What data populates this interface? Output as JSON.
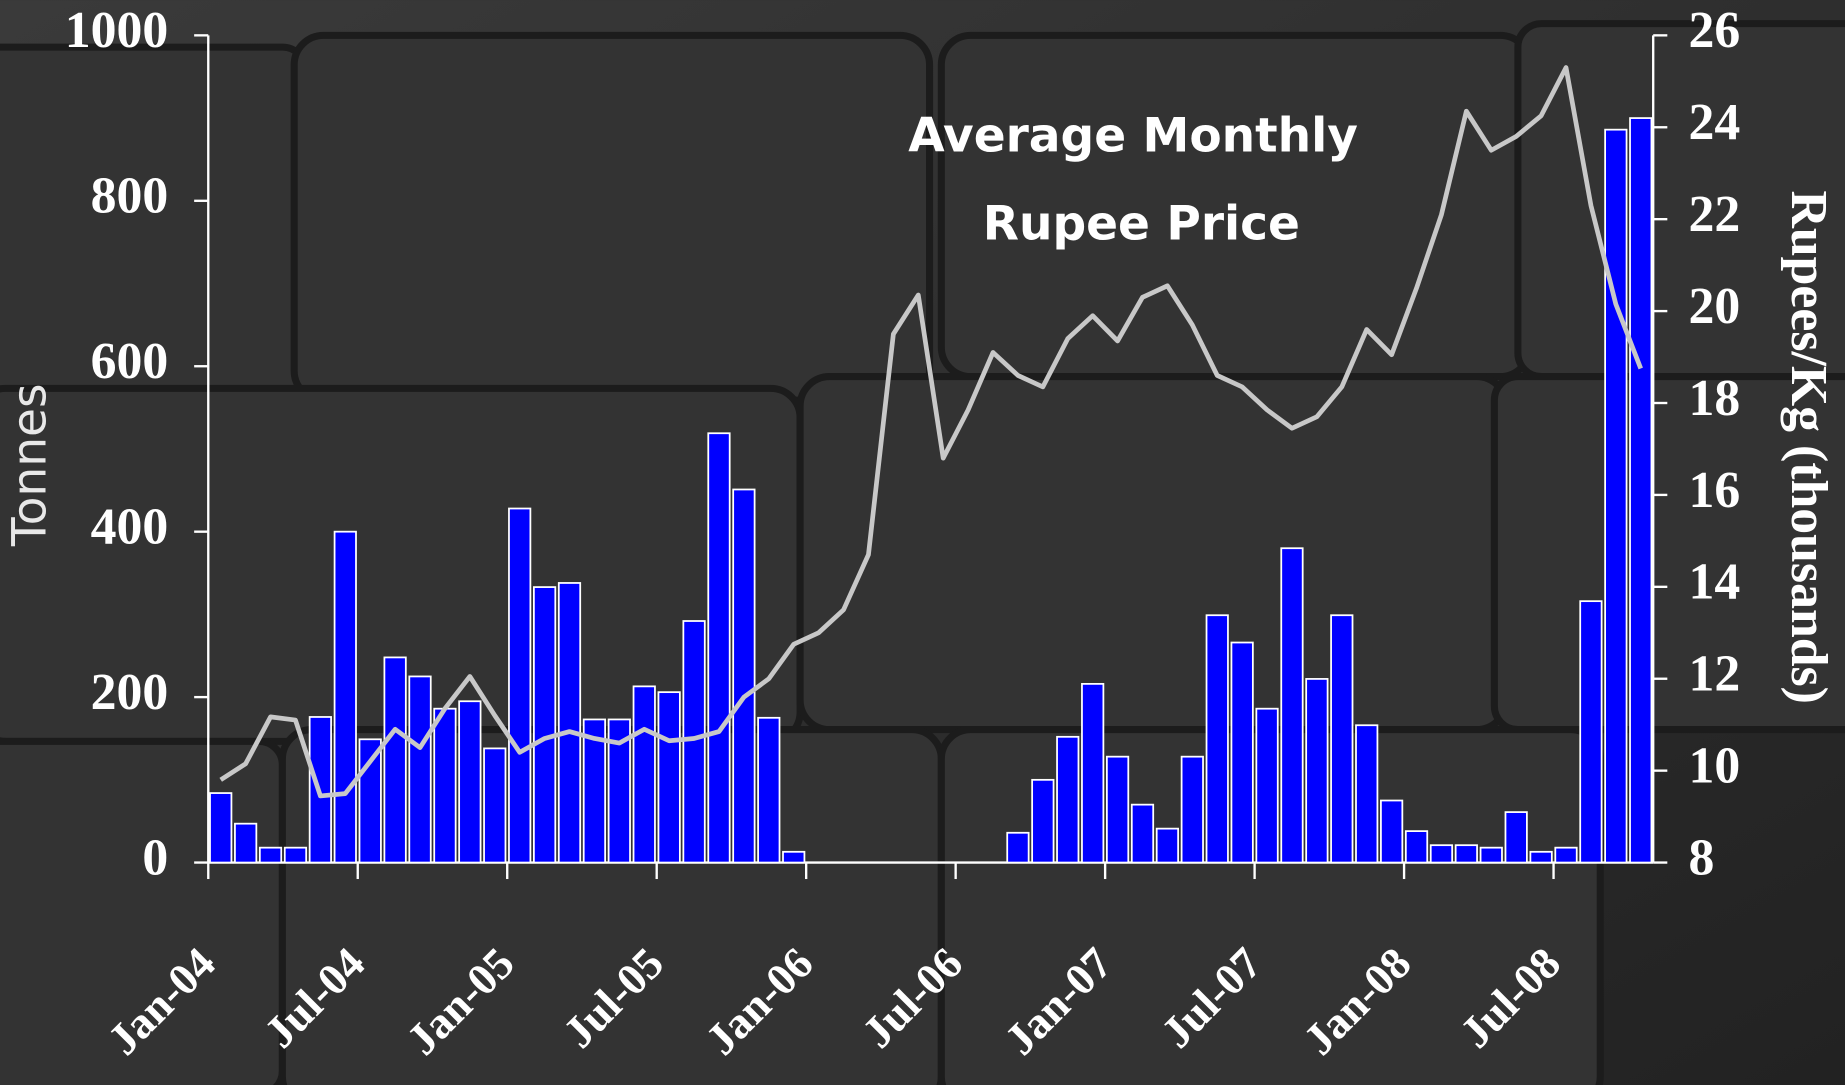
{
  "chart_data": {
    "type": "bar-line",
    "annotation": [
      "Average Monthly",
      "Rupee Price"
    ],
    "ylabel": "Tonnes",
    "y2label": "Rupees/Kg (thousands)",
    "categories": [
      "Jan-04",
      null,
      null,
      null,
      null,
      null,
      "Jul-04",
      null,
      null,
      null,
      null,
      null,
      "Jan-05",
      null,
      null,
      null,
      null,
      null,
      "Jul-05",
      null,
      null,
      null,
      null,
      null,
      "Jan-06",
      null,
      null,
      null,
      null,
      null,
      "Jul-06",
      null,
      null,
      null,
      null,
      null,
      "Jan-07",
      null,
      null,
      null,
      null,
      null,
      "Jul-07",
      null,
      null,
      null,
      null,
      null,
      "Jan-08",
      null,
      null,
      null,
      null,
      null,
      "Jul-08",
      null,
      null,
      null
    ],
    "series": [
      {
        "type": "bar",
        "color": "#0000ff",
        "values": [
          84,
          47,
          18,
          18,
          176,
          400,
          149,
          248,
          225,
          186,
          195,
          138,
          428,
          333,
          338,
          173,
          173,
          213,
          206,
          292,
          519,
          451,
          175,
          13,
          0,
          0,
          0,
          0,
          0,
          0,
          0,
          0,
          36,
          100,
          152,
          216,
          128,
          70,
          41,
          128,
          299,
          266,
          186,
          380,
          222,
          299,
          166,
          75,
          38,
          21,
          21,
          18,
          61,
          13,
          18,
          316,
          886,
          900
        ]
      },
      {
        "type": "line",
        "color": "#c8c8c8",
        "axis": "y2",
        "values": [
          9.8,
          10.15,
          11.17,
          11.1,
          9.45,
          9.5,
          10.2,
          10.9,
          10.5,
          11.35,
          12.05,
          11.2,
          10.4,
          10.7,
          10.85,
          10.7,
          10.6,
          10.9,
          10.65,
          10.7,
          10.85,
          11.6,
          12.0,
          12.75,
          13.0,
          13.5,
          14.7,
          19.5,
          20.35,
          16.8,
          17.85,
          19.1,
          18.6,
          18.35,
          19.4,
          19.9,
          19.35,
          20.3,
          20.55,
          19.7,
          18.6,
          18.35,
          17.85,
          17.45,
          17.7,
          18.35,
          19.6,
          19.05,
          20.5,
          22.1,
          24.35,
          23.5,
          23.8,
          24.25,
          25.3,
          22.3,
          20.15,
          18.75
        ]
      }
    ],
    "ylim": [
      0,
      1000
    ],
    "yticks": [
      0,
      200,
      400,
      600,
      800,
      1000
    ],
    "y2lim": [
      8,
      26
    ],
    "y2ticks": [
      8,
      10,
      12,
      14,
      16,
      18,
      20,
      22,
      24,
      26
    ],
    "xtick_every": 6
  }
}
